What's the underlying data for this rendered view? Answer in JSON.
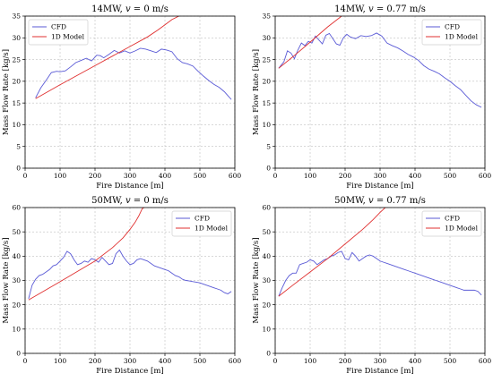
{
  "chart_data": [
    {
      "type": "line",
      "title": "14MW, v = 0 m/s",
      "title_parts": [
        "14MW, ",
        "v",
        " = 0 m/s"
      ],
      "xlabel": "Fire Distance [m]",
      "ylabel": "Mass Flow Rate [kg/s]",
      "xlim": [
        0,
        600
      ],
      "ylim": [
        0,
        35
      ],
      "xticks": [
        0,
        100,
        200,
        300,
        400,
        500,
        600
      ],
      "yticks": [
        0,
        5,
        10,
        15,
        20,
        25,
        30,
        35
      ],
      "grid": true,
      "legend": "top-left",
      "series": [
        {
          "name": "CFD",
          "color": "#5a5ad6",
          "x": [
            30,
            45,
            60,
            75,
            90,
            100,
            115,
            130,
            145,
            160,
            175,
            190,
            205,
            215,
            225,
            240,
            255,
            270,
            285,
            300,
            315,
            330,
            345,
            360,
            375,
            390,
            405,
            420,
            435,
            450,
            465,
            480,
            495,
            510,
            525,
            540,
            555,
            570,
            590
          ],
          "y": [
            16.2,
            18.5,
            20.2,
            22.0,
            22.3,
            22.2,
            22.4,
            23.3,
            24.3,
            24.8,
            25.3,
            24.7,
            26.0,
            25.9,
            25.4,
            26.2,
            27.1,
            26.5,
            27.0,
            26.5,
            27.0,
            27.6,
            27.4,
            27.0,
            26.6,
            27.4,
            27.2,
            26.8,
            25.2,
            24.3,
            24.0,
            23.5,
            22.3,
            21.2,
            20.2,
            19.3,
            18.6,
            17.6,
            15.8
          ]
        },
        {
          "name": "1D Model",
          "color": "#e03030",
          "x": [
            30,
            100,
            200,
            300,
            350,
            380,
            400,
            420,
            440
          ],
          "y": [
            16.0,
            19.2,
            23.6,
            28.0,
            30.2,
            31.8,
            33.0,
            34.2,
            35.0
          ]
        }
      ]
    },
    {
      "type": "line",
      "title": "14MW, v = 0.77 m/s",
      "title_parts": [
        "14MW, ",
        "v",
        " = 0.77 m/s"
      ],
      "xlabel": "Fire Distance [m]",
      "ylabel": "Mass Flow Rate [kg/s]",
      "xlim": [
        0,
        600
      ],
      "ylim": [
        0,
        35
      ],
      "xticks": [
        0,
        100,
        200,
        300,
        400,
        500,
        600
      ],
      "yticks": [
        0,
        5,
        10,
        15,
        20,
        25,
        30,
        35
      ],
      "grid": true,
      "legend": "top-right",
      "series": [
        {
          "name": "CFD",
          "color": "#5a5ad6",
          "x": [
            10,
            25,
            35,
            45,
            55,
            65,
            75,
            85,
            95,
            105,
            115,
            125,
            135,
            145,
            155,
            165,
            175,
            185,
            195,
            205,
            215,
            230,
            245,
            260,
            275,
            290,
            305,
            320,
            335,
            350,
            365,
            380,
            395,
            410,
            425,
            440,
            455,
            470,
            485,
            500,
            515,
            530,
            545,
            560,
            575,
            590
          ],
          "y": [
            23.0,
            24.5,
            27.0,
            26.5,
            25.2,
            27.2,
            28.8,
            28.2,
            29.2,
            28.8,
            30.4,
            29.5,
            28.6,
            30.6,
            31.0,
            29.8,
            28.6,
            28.3,
            30.0,
            30.8,
            30.2,
            29.8,
            30.5,
            30.3,
            30.5,
            31.1,
            30.4,
            28.8,
            28.2,
            27.7,
            27.0,
            26.2,
            25.6,
            24.8,
            23.6,
            22.8,
            22.3,
            21.7,
            20.8,
            20.0,
            19.0,
            18.1,
            16.8,
            15.5,
            14.6,
            14.0
          ]
        },
        {
          "name": "1D Model",
          "color": "#e03030",
          "x": [
            10,
            50,
            100,
            150,
            190
          ],
          "y": [
            23.0,
            25.6,
            29.0,
            32.5,
            35.0
          ]
        }
      ]
    },
    {
      "type": "line",
      "title": "50MW, v = 0 m/s",
      "title_parts": [
        "50MW, ",
        "v",
        " = 0 m/s"
      ],
      "xlabel": "Fire Distance [m]",
      "ylabel": "Mass Flow Rate [kg/s]",
      "xlim": [
        0,
        600
      ],
      "ylim": [
        0,
        60
      ],
      "xticks": [
        0,
        100,
        200,
        300,
        400,
        500,
        600
      ],
      "yticks": [
        0,
        10,
        20,
        30,
        40,
        50,
        60
      ],
      "grid": true,
      "legend": "top-right",
      "series": [
        {
          "name": "CFD",
          "color": "#5a5ad6",
          "x": [
            10,
            20,
            30,
            40,
            50,
            60,
            70,
            80,
            90,
            100,
            110,
            120,
            130,
            140,
            150,
            160,
            170,
            180,
            190,
            200,
            210,
            220,
            230,
            240,
            250,
            260,
            270,
            280,
            290,
            300,
            310,
            320,
            330,
            340,
            350,
            360,
            370,
            380,
            390,
            400,
            410,
            420,
            430,
            440,
            450,
            460,
            470,
            480,
            490,
            500,
            510,
            520,
            530,
            540,
            550,
            560,
            570,
            580,
            590
          ],
          "y": [
            22.5,
            28.0,
            30.5,
            32.0,
            32.5,
            33.5,
            34.5,
            36.0,
            36.5,
            38.0,
            39.5,
            42.0,
            41.0,
            38.5,
            36.5,
            37.0,
            38.0,
            37.5,
            39.0,
            38.5,
            37.5,
            39.5,
            38.0,
            36.5,
            37.0,
            41.0,
            42.5,
            40.0,
            38.0,
            36.5,
            37.0,
            38.5,
            39.0,
            38.5,
            38.0,
            37.0,
            36.0,
            35.5,
            35.0,
            34.5,
            34.0,
            33.0,
            32.0,
            31.5,
            30.5,
            30.0,
            29.8,
            29.5,
            29.3,
            29.0,
            28.5,
            28.0,
            27.5,
            27.0,
            26.5,
            26.0,
            25.0,
            24.5,
            25.5
          ]
        },
        {
          "name": "1D Model",
          "color": "#e03030",
          "x": [
            10,
            100,
            200,
            250,
            280,
            300,
            315,
            325,
            335,
            340
          ],
          "y": [
            22.0,
            29.5,
            38.0,
            43.5,
            47.5,
            51.0,
            54.0,
            56.5,
            59.5,
            60.0
          ]
        }
      ]
    },
    {
      "type": "line",
      "title": "50MW, v = 0.77 m/s",
      "title_parts": [
        "50MW, ",
        "v",
        " = 0.77 m/s"
      ],
      "xlabel": "Fire Distance [m]",
      "ylabel": "Mass Flow Rate [kg/s]",
      "xlim": [
        0,
        600
      ],
      "ylim": [
        0,
        60
      ],
      "xticks": [
        0,
        100,
        200,
        300,
        400,
        500,
        600
      ],
      "yticks": [
        0,
        10,
        20,
        30,
        40,
        50,
        60
      ],
      "grid": true,
      "legend": "top-right",
      "series": [
        {
          "name": "CFD",
          "color": "#5a5ad6",
          "x": [
            10,
            20,
            30,
            40,
            50,
            60,
            70,
            80,
            90,
            100,
            110,
            120,
            130,
            140,
            150,
            160,
            170,
            180,
            190,
            200,
            210,
            220,
            230,
            240,
            250,
            260,
            270,
            280,
            290,
            300,
            310,
            320,
            330,
            340,
            350,
            360,
            370,
            380,
            390,
            400,
            410,
            420,
            430,
            440,
            450,
            460,
            470,
            480,
            490,
            500,
            510,
            520,
            530,
            540,
            550,
            560,
            570,
            580,
            590
          ],
          "y": [
            23.5,
            27.0,
            30.0,
            32.0,
            33.0,
            33.0,
            36.5,
            37.0,
            37.5,
            38.5,
            38.0,
            36.5,
            37.5,
            38.5,
            39.0,
            40.0,
            40.5,
            41.5,
            42.0,
            39.0,
            38.5,
            41.5,
            40.0,
            38.0,
            39.0,
            40.0,
            40.5,
            40.0,
            39.0,
            38.0,
            37.5,
            37.0,
            36.5,
            36.0,
            35.5,
            35.0,
            34.5,
            34.0,
            33.5,
            33.0,
            32.5,
            32.0,
            31.5,
            31.0,
            30.5,
            30.0,
            29.5,
            29.0,
            28.5,
            28.0,
            27.5,
            27.0,
            26.5,
            26.0,
            26.0,
            26.0,
            26.0,
            25.5,
            24.0
          ]
        },
        {
          "name": "1D Model",
          "color": "#e03030",
          "x": [
            10,
            50,
            100,
            150,
            200,
            250,
            280,
            300,
            315
          ],
          "y": [
            23.5,
            28.0,
            33.5,
            39.0,
            45.0,
            51.0,
            55.0,
            58.0,
            60.0
          ]
        }
      ]
    }
  ]
}
